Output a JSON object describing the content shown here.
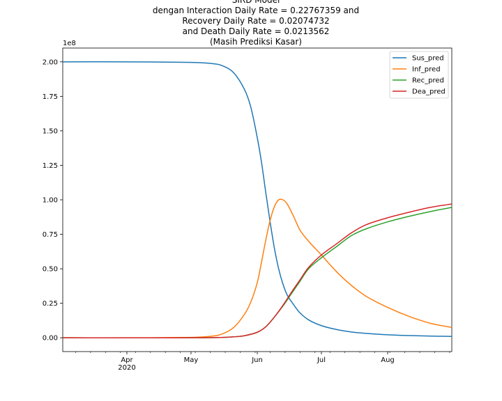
{
  "chart_data": {
    "type": "line",
    "title_lines": [
      "SIRD Model",
      "dengan Interaction Daily Rate = 0.22767359 and",
      "Recovery Daily Rate = 0.02074732",
      "and Death Daily Rate = 0.0213562",
      "(Masih Prediksi Kasar)"
    ],
    "y_multiplier_label": "1e8",
    "ylim": [
      -0.1,
      2.1
    ],
    "y_ticks": [
      0.0,
      0.25,
      0.5,
      0.75,
      1.0,
      1.25,
      1.5,
      1.75,
      2.0
    ],
    "y_tick_labels": [
      "0.00",
      "0.25",
      "0.50",
      "0.75",
      "1.00",
      "1.25",
      "1.50",
      "1.75",
      "2.00"
    ],
    "xlim": [
      "2020-03-02",
      "2020-08-31"
    ],
    "x_ticks": [
      "2020-04-01",
      "2020-05-01",
      "2020-06-01",
      "2020-07-01",
      "2020-08-01"
    ],
    "x_tick_labels": [
      "Apr",
      "May",
      "Jun",
      "Jul",
      "Aug"
    ],
    "x_year_label": "2020",
    "legend_position": "top-right",
    "grid": false,
    "series": [
      {
        "name": "Sus_pred",
        "color": "#1f77b4",
        "points": [
          [
            "2020-03-02",
            2.0
          ],
          [
            "2020-04-01",
            2.0
          ],
          [
            "2020-05-01",
            1.996
          ],
          [
            "2020-05-11",
            1.987
          ],
          [
            "2020-05-16",
            1.97
          ],
          [
            "2020-05-21",
            1.92
          ],
          [
            "2020-05-26",
            1.8
          ],
          [
            "2020-05-29",
            1.67
          ],
          [
            "2020-06-01",
            1.45
          ],
          [
            "2020-06-03",
            1.27
          ],
          [
            "2020-06-05",
            1.05
          ],
          [
            "2020-06-07",
            0.84
          ],
          [
            "2020-06-09",
            0.65
          ],
          [
            "2020-06-11",
            0.5
          ],
          [
            "2020-06-13",
            0.39
          ],
          [
            "2020-06-15",
            0.31
          ],
          [
            "2020-06-18",
            0.24
          ],
          [
            "2020-06-21",
            0.18
          ],
          [
            "2020-06-25",
            0.13
          ],
          [
            "2020-07-01",
            0.088
          ],
          [
            "2020-07-08",
            0.06
          ],
          [
            "2020-07-15",
            0.042
          ],
          [
            "2020-07-22",
            0.032
          ],
          [
            "2020-08-01",
            0.022
          ],
          [
            "2020-08-11",
            0.016
          ],
          [
            "2020-08-21",
            0.012
          ],
          [
            "2020-08-31",
            0.01
          ]
        ]
      },
      {
        "name": "Inf_pred",
        "color": "#ff7f0e",
        "points": [
          [
            "2020-03-02",
            0.0
          ],
          [
            "2020-04-01",
            0.0
          ],
          [
            "2020-05-01",
            0.003
          ],
          [
            "2020-05-11",
            0.012
          ],
          [
            "2020-05-16",
            0.03
          ],
          [
            "2020-05-21",
            0.075
          ],
          [
            "2020-05-26",
            0.17
          ],
          [
            "2020-05-29",
            0.26
          ],
          [
            "2020-06-01",
            0.4
          ],
          [
            "2020-06-03",
            0.55
          ],
          [
            "2020-06-05",
            0.71
          ],
          [
            "2020-06-07",
            0.85
          ],
          [
            "2020-06-09",
            0.95
          ],
          [
            "2020-06-11",
            1.0
          ],
          [
            "2020-06-13",
            1.0
          ],
          [
            "2020-06-15",
            0.97
          ],
          [
            "2020-06-18",
            0.88
          ],
          [
            "2020-06-21",
            0.78
          ],
          [
            "2020-06-25",
            0.7
          ],
          [
            "2020-07-01",
            0.6
          ],
          [
            "2020-07-08",
            0.48
          ],
          [
            "2020-07-15",
            0.38
          ],
          [
            "2020-07-22",
            0.3
          ],
          [
            "2020-08-01",
            0.22
          ],
          [
            "2020-08-11",
            0.155
          ],
          [
            "2020-08-21",
            0.105
          ],
          [
            "2020-08-31",
            0.075
          ]
        ]
      },
      {
        "name": "Rec_pred",
        "color": "#2ca02c",
        "points": [
          [
            "2020-03-02",
            0.0
          ],
          [
            "2020-05-01",
            0.0
          ],
          [
            "2020-05-16",
            0.003
          ],
          [
            "2020-05-21",
            0.007
          ],
          [
            "2020-05-26",
            0.015
          ],
          [
            "2020-06-01",
            0.04
          ],
          [
            "2020-06-05",
            0.08
          ],
          [
            "2020-06-09",
            0.15
          ],
          [
            "2020-06-13",
            0.23
          ],
          [
            "2020-06-17",
            0.32
          ],
          [
            "2020-06-21",
            0.41
          ],
          [
            "2020-06-25",
            0.5
          ],
          [
            "2020-07-01",
            0.58
          ],
          [
            "2020-07-08",
            0.66
          ],
          [
            "2020-07-15",
            0.74
          ],
          [
            "2020-07-22",
            0.79
          ],
          [
            "2020-08-01",
            0.84
          ],
          [
            "2020-08-11",
            0.88
          ],
          [
            "2020-08-21",
            0.915
          ],
          [
            "2020-08-31",
            0.945
          ]
        ]
      },
      {
        "name": "Dea_pred",
        "color": "#d62728",
        "points": [
          [
            "2020-03-02",
            0.0
          ],
          [
            "2020-05-01",
            0.0
          ],
          [
            "2020-05-16",
            0.003
          ],
          [
            "2020-05-21",
            0.007
          ],
          [
            "2020-05-26",
            0.015
          ],
          [
            "2020-06-01",
            0.04
          ],
          [
            "2020-06-05",
            0.08
          ],
          [
            "2020-06-09",
            0.15
          ],
          [
            "2020-06-13",
            0.235
          ],
          [
            "2020-06-17",
            0.33
          ],
          [
            "2020-06-21",
            0.42
          ],
          [
            "2020-06-25",
            0.51
          ],
          [
            "2020-07-01",
            0.6
          ],
          [
            "2020-07-08",
            0.68
          ],
          [
            "2020-07-15",
            0.76
          ],
          [
            "2020-07-22",
            0.82
          ],
          [
            "2020-08-01",
            0.87
          ],
          [
            "2020-08-11",
            0.91
          ],
          [
            "2020-08-21",
            0.945
          ],
          [
            "2020-08-31",
            0.97
          ]
        ]
      }
    ]
  }
}
